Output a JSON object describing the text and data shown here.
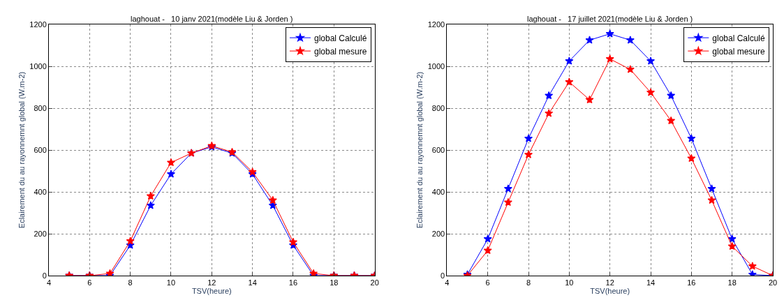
{
  "chart_data": [
    {
      "type": "line",
      "title": "laghouat -   10 janv 2021(modèle Liu & Jorden )",
      "xlabel": "TSV(heure)",
      "ylabel": "Eclairement du au rayonnemnt global (W.m-2)",
      "x": [
        5,
        6,
        7,
        8,
        9,
        10,
        11,
        12,
        13,
        14,
        15,
        16,
        17,
        18,
        19,
        20
      ],
      "series": [
        {
          "name": "global Calculé",
          "color": "#0000ff",
          "values": [
            0,
            0,
            0,
            145,
            335,
            485,
            585,
            615,
            585,
            485,
            335,
            145,
            0,
            0,
            0,
            0
          ]
        },
        {
          "name": "global mesure",
          "color": "#ff0000",
          "values": [
            0,
            0,
            10,
            165,
            380,
            540,
            585,
            620,
            590,
            495,
            360,
            160,
            10,
            0,
            0,
            0
          ]
        }
      ],
      "xlim": [
        4,
        20
      ],
      "xticks": [
        4,
        6,
        8,
        10,
        12,
        14,
        16,
        18,
        20
      ],
      "ylim": [
        0,
        1200
      ],
      "yticks": [
        0,
        200,
        400,
        600,
        800,
        1000,
        1200
      ],
      "grid": true,
      "legend": "top right",
      "marker": "star",
      "line_style": "solid"
    },
    {
      "type": "line",
      "title": "laghouat -   17 juillet 2021(modèle Liu & Jorden )",
      "xlabel": "TSV(heure)",
      "ylabel": "Eclairement du au rayonnemnt global (W.m-2)",
      "x": [
        5,
        6,
        7,
        8,
        9,
        10,
        11,
        12,
        13,
        14,
        15,
        16,
        17,
        18,
        19,
        20
      ],
      "series": [
        {
          "name": "global Calculé",
          "color": "#0000ff",
          "values": [
            5,
            175,
            415,
            655,
            860,
            1025,
            1125,
            1155,
            1125,
            1025,
            860,
            655,
            415,
            175,
            5,
            0
          ]
        },
        {
          "name": "global mesure",
          "color": "#ff0000",
          "values": [
            0,
            120,
            350,
            578,
            775,
            925,
            840,
            1035,
            985,
            875,
            740,
            560,
            360,
            140,
            45,
            0
          ]
        }
      ],
      "xlim": [
        4,
        20
      ],
      "xticks": [
        4,
        6,
        8,
        10,
        12,
        14,
        16,
        18,
        20
      ],
      "ylim": [
        0,
        1200
      ],
      "yticks": [
        0,
        200,
        400,
        600,
        800,
        1000,
        1200
      ],
      "grid": true,
      "legend": "top right",
      "marker": "star",
      "line_style": "solid"
    }
  ]
}
